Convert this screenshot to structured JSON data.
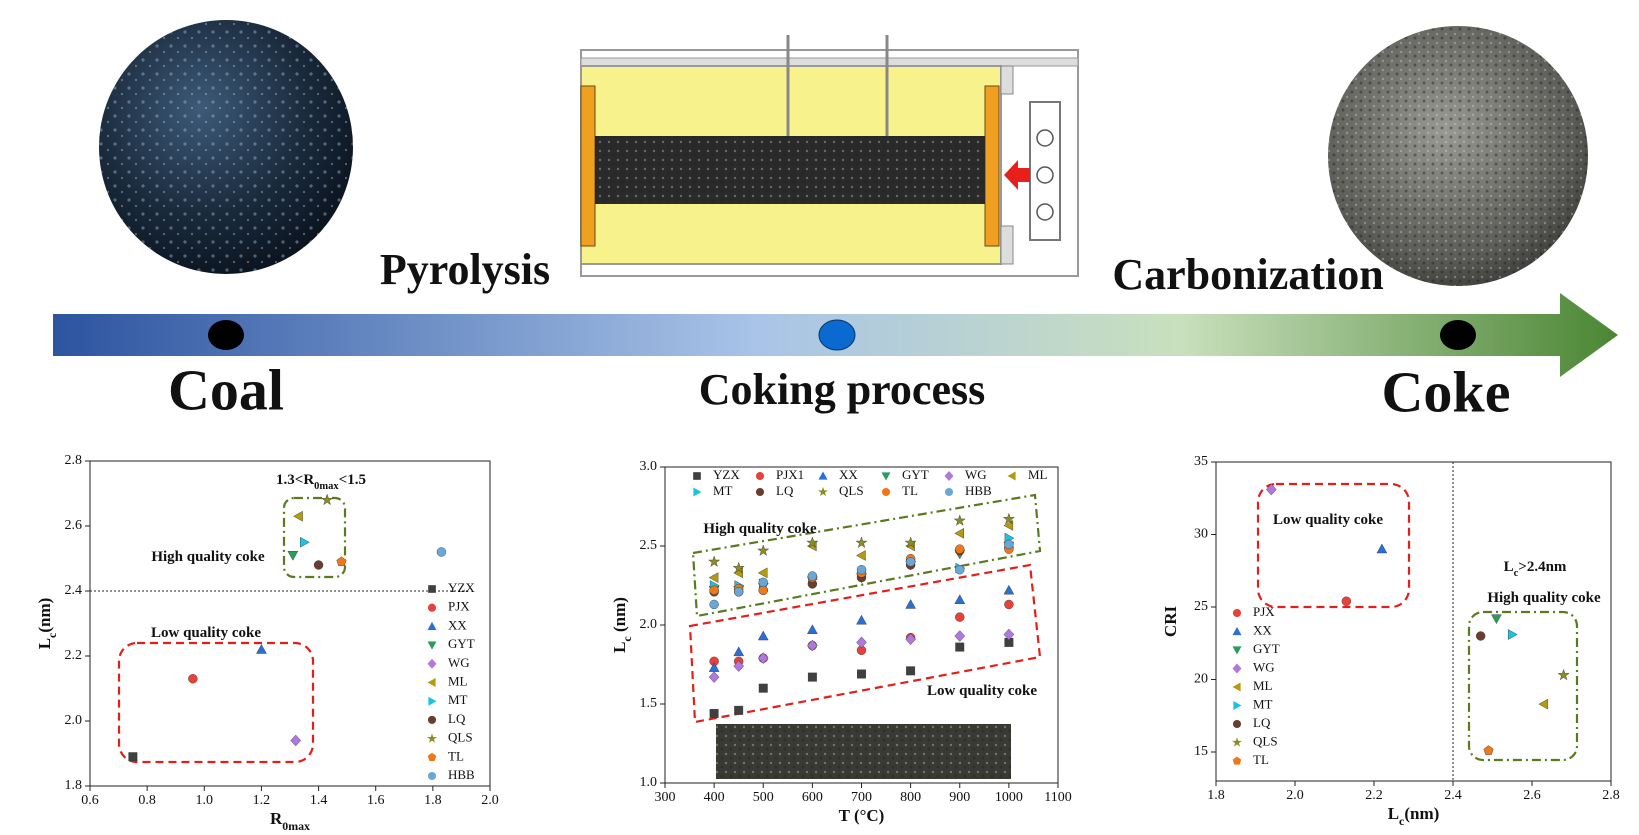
{
  "diagram": {
    "stages": [
      "Coal",
      "Coking process",
      "Coke"
    ],
    "processes": [
      "Pyrolysis",
      "Carbonization"
    ]
  },
  "chart_data": [
    {
      "type": "scatter",
      "xlabel": [
        "R",
        "0max"
      ],
      "ylabel": [
        "L",
        "c",
        "(nm)"
      ],
      "xlim": [
        0.6,
        2.0
      ],
      "xticks": [
        0.6,
        0.8,
        {
          "value": 1.0,
          "label": "1.0"
        },
        1.2,
        1.4,
        1.6,
        1.8,
        {
          "value": 2.0,
          "label": "2.0"
        }
      ],
      "ylim": [
        1.8,
        2.8
      ],
      "yticks": [
        1.8,
        {
          "value": 2.0,
          "label": "2.0"
        },
        2.2,
        2.4,
        2.6,
        2.8
      ],
      "hline": 2.4,
      "annotations": [
        [
          "1.3<R",
          "0max",
          "<1.5"
        ],
        [
          "High quality coke"
        ],
        [
          "Low quality coke"
        ]
      ],
      "series": [
        {
          "name": "YZX",
          "color": "#404040",
          "marker": "square",
          "x": [
            0.75
          ],
          "values": [
            1.89
          ]
        },
        {
          "name": "PJX",
          "color": "#e8403a",
          "marker": "circle",
          "x": [
            0.96
          ],
          "values": [
            2.13
          ]
        },
        {
          "name": "XX",
          "color": "#2a6fd6",
          "marker": "triangle",
          "x": [
            1.2
          ],
          "values": [
            2.22
          ]
        },
        {
          "name": "GYT",
          "color": "#2a9d5c",
          "marker": "triangle-down",
          "x": [
            1.31
          ],
          "values": [
            2.51
          ]
        },
        {
          "name": "WG",
          "color": "#b077e0",
          "marker": "diamond",
          "x": [
            1.32
          ],
          "values": [
            1.94
          ]
        },
        {
          "name": "ML",
          "color": "#b59a10",
          "marker": "triangle-left",
          "x": [
            1.33
          ],
          "values": [
            2.63
          ]
        },
        {
          "name": "MT",
          "color": "#17c5e0",
          "marker": "triangle-right",
          "x": [
            1.35
          ],
          "values": [
            2.55
          ]
        },
        {
          "name": "LQ",
          "color": "#6b3d2e",
          "marker": "circle",
          "x": [
            1.4
          ],
          "values": [
            2.48
          ]
        },
        {
          "name": "QLS",
          "color": "#8c8c22",
          "marker": "star",
          "x": [
            1.43
          ],
          "values": [
            2.68
          ]
        },
        {
          "name": "TL",
          "color": "#f07818",
          "marker": "pentagon",
          "x": [
            1.48
          ],
          "values": [
            2.49
          ]
        },
        {
          "name": "HBB",
          "color": "#6aa6d6",
          "marker": "circle",
          "x": [
            1.83
          ],
          "values": [
            2.52
          ]
        }
      ]
    },
    {
      "type": "scatter",
      "xlabel": [
        "T (°C)"
      ],
      "ylabel": [
        "L",
        "c",
        " (nm)"
      ],
      "xlim": [
        300,
        1100
      ],
      "xticks": [
        300,
        400,
        500,
        600,
        700,
        800,
        900,
        1000,
        1100
      ],
      "ylim": [
        1.0,
        3.0
      ],
      "yticks": [
        {
          "value": 1.0,
          "label": "1.0"
        },
        1.5,
        {
          "value": 2.0,
          "label": "2.0"
        },
        2.5,
        {
          "value": 3.0,
          "label": "3.0"
        }
      ],
      "annotations": [
        [
          "High quality coke"
        ],
        [
          "Low quality coke"
        ]
      ],
      "x": [
        400,
        450,
        500,
        600,
        700,
        800,
        900,
        1000
      ],
      "series": [
        {
          "name": "YZX",
          "color": "#404040",
          "marker": "square",
          "values": [
            1.44,
            1.46,
            1.6,
            1.67,
            1.69,
            1.71,
            1.86,
            1.89
          ]
        },
        {
          "name": "PJX1",
          "color": "#e8403a",
          "marker": "circle",
          "values": [
            1.77,
            1.77,
            1.79,
            1.87,
            1.84,
            1.92,
            2.05,
            2.13
          ]
        },
        {
          "name": "XX",
          "color": "#2a6fd6",
          "marker": "triangle",
          "values": [
            1.73,
            1.83,
            1.93,
            1.97,
            2.03,
            2.13,
            2.16,
            2.22
          ]
        },
        {
          "name": "GYT",
          "color": "#2a9d5c",
          "marker": "triangle-down",
          "values": [
            2.22,
            2.22,
            2.24,
            2.28,
            2.3,
            2.38,
            2.45,
            2.5
          ]
        },
        {
          "name": "WG",
          "color": "#b077e0",
          "marker": "diamond",
          "values": [
            1.67,
            1.74,
            1.79,
            1.87,
            1.89,
            1.91,
            1.93,
            1.94
          ]
        },
        {
          "name": "ML",
          "color": "#b59a10",
          "marker": "triangle-left",
          "values": [
            2.3,
            2.33,
            2.33,
            2.5,
            2.44,
            2.5,
            2.58,
            2.63
          ]
        },
        {
          "name": "MT",
          "color": "#17c5e0",
          "marker": "triangle-right",
          "values": [
            2.25,
            2.25,
            2.26,
            2.29,
            2.32,
            2.4,
            2.36,
            2.55
          ]
        },
        {
          "name": "LQ",
          "color": "#6b3d2e",
          "marker": "circle",
          "values": [
            2.21,
            2.21,
            2.22,
            2.26,
            2.3,
            2.38,
            2.47,
            2.49
          ]
        },
        {
          "name": "QLS",
          "color": "#8c8c22",
          "marker": "star",
          "values": [
            2.4,
            2.36,
            2.47,
            2.52,
            2.52,
            2.52,
            2.66,
            2.67
          ]
        },
        {
          "name": "TL",
          "color": "#f07818",
          "marker": "circle",
          "values": [
            2.22,
            2.23,
            2.22,
            2.3,
            2.33,
            2.42,
            2.48,
            2.48
          ]
        },
        {
          "name": "HBB",
          "color": "#6aa6d6",
          "marker": "circle",
          "values": [
            2.13,
            2.21,
            2.27,
            2.31,
            2.35,
            2.4,
            2.35,
            2.51
          ]
        }
      ]
    },
    {
      "type": "scatter",
      "xlabel": [
        "L",
        "c",
        "(nm)"
      ],
      "ylabel": [
        "CRI"
      ],
      "xlim": [
        1.8,
        2.8
      ],
      "xticks": [
        1.8,
        {
          "value": 2.0,
          "label": "2.0"
        },
        2.2,
        2.4,
        2.6,
        2.8
      ],
      "ylim": [
        13,
        35
      ],
      "yticks": [
        15,
        20,
        25,
        30,
        35
      ],
      "vline": 2.4,
      "annotations": [
        [
          "Low quality coke"
        ],
        [
          "L",
          "c",
          ">2.4nm"
        ],
        [
          "High quality coke"
        ]
      ],
      "series": [
        {
          "name": "PJX",
          "color": "#e8403a",
          "marker": "circle",
          "x": [
            2.13
          ],
          "values": [
            25.4
          ]
        },
        {
          "name": "XX",
          "color": "#2a6fd6",
          "marker": "triangle",
          "x": [
            2.22
          ],
          "values": [
            29.0
          ]
        },
        {
          "name": "GYT",
          "color": "#2a9d5c",
          "marker": "triangle-down",
          "x": [
            2.51
          ],
          "values": [
            24.2
          ]
        },
        {
          "name": "WG",
          "color": "#b077e0",
          "marker": "diamond",
          "x": [
            1.94
          ],
          "values": [
            33.1
          ]
        },
        {
          "name": "ML",
          "color": "#b59a10",
          "marker": "triangle-left",
          "x": [
            2.63
          ],
          "values": [
            18.3
          ]
        },
        {
          "name": "MT",
          "color": "#17c5e0",
          "marker": "triangle-right",
          "x": [
            2.55
          ],
          "values": [
            23.1
          ]
        },
        {
          "name": "LQ",
          "color": "#6b3d2e",
          "marker": "circle",
          "x": [
            2.47
          ],
          "values": [
            23.0
          ]
        },
        {
          "name": "QLS",
          "color": "#8c8c22",
          "marker": "star",
          "x": [
            2.68
          ],
          "values": [
            20.3
          ]
        },
        {
          "name": "TL",
          "color": "#f07818",
          "marker": "pentagon",
          "x": [
            2.49
          ],
          "values": [
            15.1
          ]
        }
      ]
    }
  ]
}
